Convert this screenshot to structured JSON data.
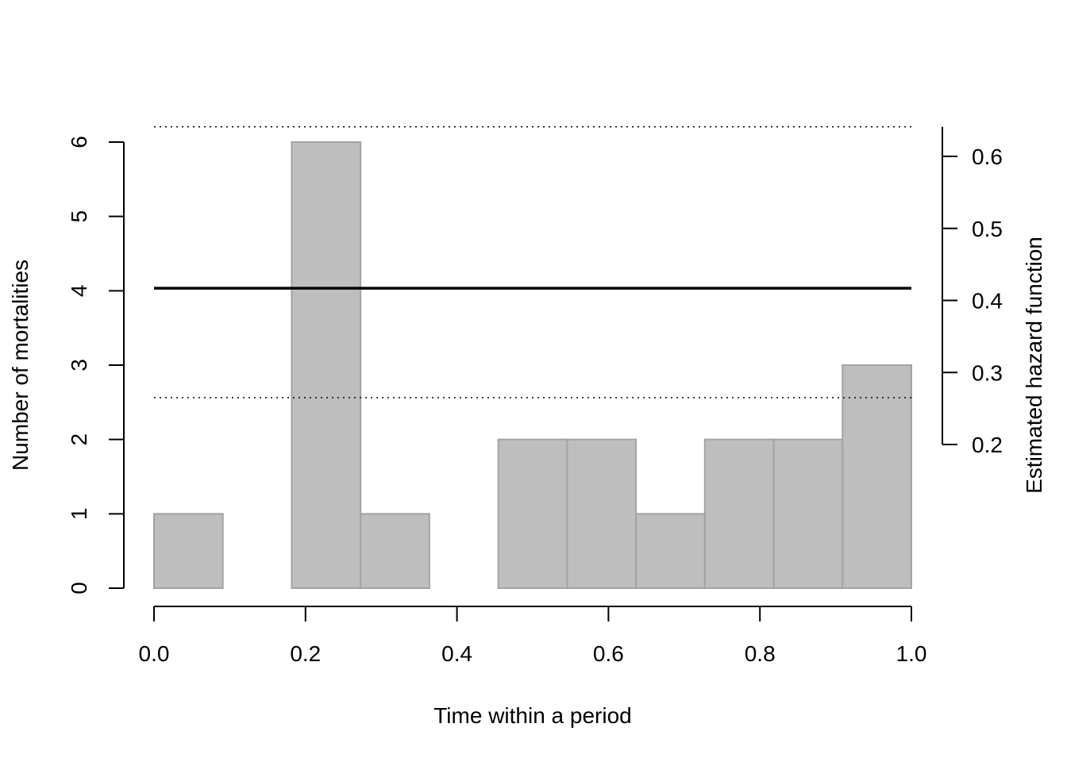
{
  "chart_data": {
    "type": "bar",
    "title": "",
    "xlabel": "Time within a period",
    "ylabel": "Number of mortalities",
    "y2label": "Estimated hazard function",
    "bins": [
      {
        "x0": 0.0,
        "x1": 0.0909,
        "count": 1
      },
      {
        "x0": 0.0909,
        "x1": 0.1818,
        "count": 0
      },
      {
        "x0": 0.1818,
        "x1": 0.2727,
        "count": 6
      },
      {
        "x0": 0.2727,
        "x1": 0.3636,
        "count": 1
      },
      {
        "x0": 0.3636,
        "x1": 0.4545,
        "count": 0
      },
      {
        "x0": 0.4545,
        "x1": 0.5455,
        "count": 2
      },
      {
        "x0": 0.5455,
        "x1": 0.6364,
        "count": 2
      },
      {
        "x0": 0.6364,
        "x1": 0.7273,
        "count": 1
      },
      {
        "x0": 0.7273,
        "x1": 0.8182,
        "count": 2
      },
      {
        "x0": 0.8182,
        "x1": 0.9091,
        "count": 2
      },
      {
        "x0": 0.9091,
        "x1": 1.0,
        "count": 3
      }
    ],
    "hazard": {
      "estimate": 0.417,
      "lower": 0.265,
      "upper": 0.641
    },
    "xlim": [
      0,
      1
    ],
    "ylim": [
      0,
      6
    ],
    "y2lim": [
      0.2,
      0.641
    ],
    "x_ticks": [
      "0.0",
      "0.2",
      "0.4",
      "0.6",
      "0.8",
      "1.0"
    ],
    "y_ticks": [
      "0",
      "1",
      "2",
      "3",
      "4",
      "5",
      "6"
    ],
    "y2_ticks": [
      "0.2",
      "0.3",
      "0.4",
      "0.5",
      "0.6"
    ],
    "grid": false,
    "colors": {
      "bar_fill": "#bebebe",
      "bar_stroke": "#a3a3a3",
      "line": "#000000"
    }
  }
}
